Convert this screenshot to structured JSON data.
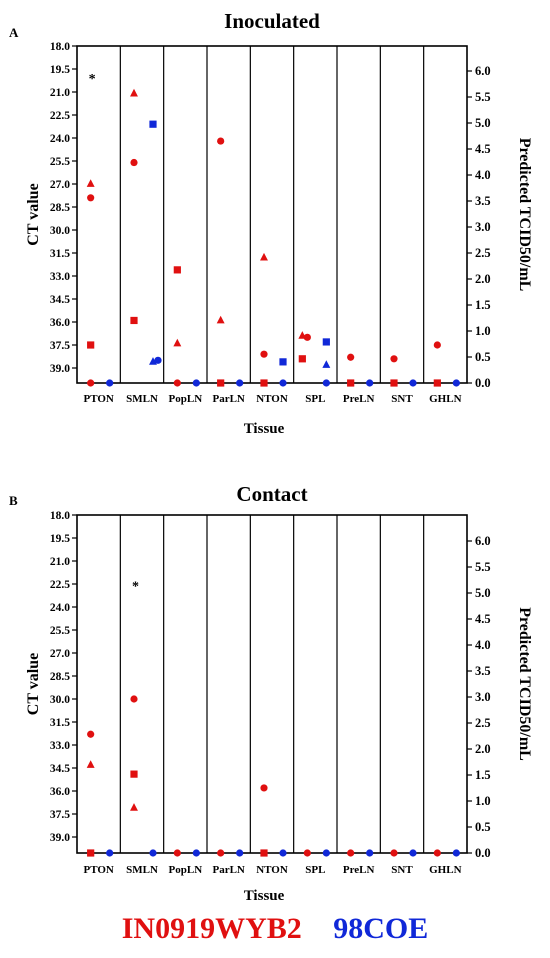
{
  "chart_data": [
    {
      "type": "scatter",
      "panel_letter": "A",
      "title": "Inoculated",
      "xlabel": "Tissue",
      "ylabel_left": "CT value",
      "ylabel_right": "Predicted TCID50/mL",
      "categories": [
        "PTON",
        "SMLN",
        "PopLN",
        "ParLN",
        "NTON",
        "SPL",
        "PreLN",
        "SNT",
        "GHLN"
      ],
      "left_axis": {
        "range": [
          18.0,
          40.5
        ],
        "inverted": true,
        "ticks": [
          "18.0",
          "19.5",
          "21.0",
          "22.5",
          "24.0",
          "25.5",
          "27.0",
          "28.5",
          "30.0",
          "31.5",
          "33.0",
          "34.5",
          "36.0",
          "37.5",
          "39.0"
        ]
      },
      "right_axis": {
        "range": [
          0.0,
          6.4
        ],
        "ticks": [
          "0.0",
          "0.5",
          "1.0",
          "1.5",
          "2.0",
          "2.5",
          "3.0",
          "3.5",
          "4.0",
          "4.5",
          "5.0",
          "5.5",
          "6.0"
        ]
      },
      "annotations": [
        {
          "text": "*",
          "category": "PTON",
          "ct": 19.9
        }
      ],
      "series": [
        {
          "name": "IN0919WYB2",
          "color": "#e01010",
          "points": [
            {
              "category": "PTON",
              "ct": 27.0,
              "marker": "triangle",
              "offset": 0
            },
            {
              "category": "PTON",
              "ct": 27.9,
              "marker": "circle",
              "offset": 0
            },
            {
              "category": "PTON",
              "ct": 37.5,
              "marker": "square",
              "offset": 0
            },
            {
              "category": "PTON",
              "ct": "baseline",
              "marker": "circle",
              "offset": 0
            },
            {
              "category": "SMLN",
              "ct": 21.1,
              "marker": "triangle",
              "offset": 0
            },
            {
              "category": "SMLN",
              "ct": 25.6,
              "marker": "circle",
              "offset": 0
            },
            {
              "category": "SMLN",
              "ct": 35.9,
              "marker": "square",
              "offset": 0
            },
            {
              "category": "PopLN",
              "ct": 32.6,
              "marker": "square",
              "offset": 0
            },
            {
              "category": "PopLN",
              "ct": 37.4,
              "marker": "triangle",
              "offset": 0
            },
            {
              "category": "PopLN",
              "ct": "baseline",
              "marker": "circle",
              "offset": 0
            },
            {
              "category": "ParLN",
              "ct": 24.2,
              "marker": "circle",
              "offset": 0
            },
            {
              "category": "ParLN",
              "ct": 35.9,
              "marker": "triangle",
              "offset": 0
            },
            {
              "category": "ParLN",
              "ct": "baseline",
              "marker": "square",
              "offset": 0
            },
            {
              "category": "NTON",
              "ct": 31.8,
              "marker": "triangle",
              "offset": 0
            },
            {
              "category": "NTON",
              "ct": 38.1,
              "marker": "circle",
              "offset": 0
            },
            {
              "category": "NTON",
              "ct": "baseline",
              "marker": "square",
              "offset": 0
            },
            {
              "category": "SPL",
              "ct": 36.9,
              "marker": "triangle",
              "offset": -1
            },
            {
              "category": "SPL",
              "ct": 37.0,
              "marker": "circle",
              "offset": 0
            },
            {
              "category": "SPL",
              "ct": 38.4,
              "marker": "square",
              "offset": -1
            },
            {
              "category": "PreLN",
              "ct": 38.3,
              "marker": "circle",
              "offset": 0
            },
            {
              "category": "PreLN",
              "ct": "baseline",
              "marker": "square",
              "offset": 0
            },
            {
              "category": "SNT",
              "ct": 38.4,
              "marker": "circle",
              "offset": 0
            },
            {
              "category": "SNT",
              "ct": "baseline",
              "marker": "square",
              "offset": 0
            },
            {
              "category": "GHLN",
              "ct": 37.5,
              "marker": "circle",
              "offset": 0
            },
            {
              "category": "GHLN",
              "ct": "baseline",
              "marker": "square",
              "offset": 0
            }
          ]
        },
        {
          "name": "98COE",
          "color": "#1028d8",
          "points": [
            {
              "category": "PTON",
              "ct": "baseline",
              "marker": "circle",
              "offset": 1
            },
            {
              "category": "SMLN",
              "ct": 23.1,
              "marker": "square",
              "offset": 1
            },
            {
              "category": "SMLN",
              "ct": 38.6,
              "marker": "triangle",
              "offset": 1
            },
            {
              "category": "SMLN",
              "ct": 38.5,
              "marker": "circle",
              "offset": 2
            },
            {
              "category": "PopLN",
              "ct": "baseline",
              "marker": "circle",
              "offset": 1
            },
            {
              "category": "ParLN",
              "ct": "baseline",
              "marker": "circle",
              "offset": 1
            },
            {
              "category": "NTON",
              "ct": 38.6,
              "marker": "square",
              "offset": 1
            },
            {
              "category": "NTON",
              "ct": "baseline",
              "marker": "circle",
              "offset": 1
            },
            {
              "category": "SPL",
              "ct": 37.3,
              "marker": "square",
              "offset": 1
            },
            {
              "category": "SPL",
              "ct": 38.8,
              "marker": "triangle",
              "offset": 1
            },
            {
              "category": "SPL",
              "ct": "baseline",
              "marker": "circle",
              "offset": 1
            },
            {
              "category": "PreLN",
              "ct": "baseline",
              "marker": "circle",
              "offset": 1
            },
            {
              "category": "SNT",
              "ct": "baseline",
              "marker": "circle",
              "offset": 1
            },
            {
              "category": "GHLN",
              "ct": "baseline",
              "marker": "circle",
              "offset": 1
            }
          ]
        }
      ]
    },
    {
      "type": "scatter",
      "panel_letter": "B",
      "title": "Contact",
      "xlabel": "Tissue",
      "ylabel_left": "CT value",
      "ylabel_right": "Predicted TCID50/mL",
      "categories": [
        "PTON",
        "SMLN",
        "PopLN",
        "ParLN",
        "NTON",
        "SPL",
        "PreLN",
        "SNT",
        "GHLN"
      ],
      "left_axis": {
        "range": [
          18.0,
          40.5
        ],
        "inverted": true,
        "ticks": [
          "18.0",
          "19.5",
          "21.0",
          "22.5",
          "24.0",
          "25.5",
          "27.0",
          "28.5",
          "30.0",
          "31.5",
          "33.0",
          "34.5",
          "36.0",
          "37.5",
          "39.0"
        ]
      },
      "right_axis": {
        "range": [
          0.0,
          6.4
        ],
        "ticks": [
          "0.0",
          "0.5",
          "1.0",
          "1.5",
          "2.0",
          "2.5",
          "3.0",
          "3.5",
          "4.0",
          "4.5",
          "5.0",
          "5.5",
          "6.0"
        ]
      },
      "annotations": [
        {
          "text": "*",
          "category": "SMLN",
          "ct": 22.4
        }
      ],
      "series": [
        {
          "name": "IN0919WYB2",
          "color": "#e01010",
          "points": [
            {
              "category": "PTON",
              "ct": 32.3,
              "marker": "circle",
              "offset": 0
            },
            {
              "category": "PTON",
              "ct": 34.3,
              "marker": "triangle",
              "offset": 0
            },
            {
              "category": "PTON",
              "ct": "baseline",
              "marker": "square",
              "offset": 0
            },
            {
              "category": "SMLN",
              "ct": 30.0,
              "marker": "circle",
              "offset": 0
            },
            {
              "category": "SMLN",
              "ct": 34.9,
              "marker": "square",
              "offset": 0
            },
            {
              "category": "SMLN",
              "ct": 37.1,
              "marker": "triangle",
              "offset": 0
            },
            {
              "category": "PopLN",
              "ct": "baseline",
              "marker": "circle",
              "offset": 0
            },
            {
              "category": "ParLN",
              "ct": "baseline",
              "marker": "circle",
              "offset": 0
            },
            {
              "category": "NTON",
              "ct": 35.8,
              "marker": "circle",
              "offset": 0
            },
            {
              "category": "NTON",
              "ct": "baseline",
              "marker": "square",
              "offset": 0
            },
            {
              "category": "SPL",
              "ct": "baseline",
              "marker": "circle",
              "offset": 0
            },
            {
              "category": "PreLN",
              "ct": "baseline",
              "marker": "circle",
              "offset": 0
            },
            {
              "category": "SNT",
              "ct": "baseline",
              "marker": "circle",
              "offset": 0
            },
            {
              "category": "GHLN",
              "ct": "baseline",
              "marker": "circle",
              "offset": 0
            }
          ]
        },
        {
          "name": "98COE",
          "color": "#1028d8",
          "points": [
            {
              "category": "PTON",
              "ct": "baseline",
              "marker": "circle",
              "offset": 1
            },
            {
              "category": "SMLN",
              "ct": "baseline",
              "marker": "circle",
              "offset": 1
            },
            {
              "category": "PopLN",
              "ct": "baseline",
              "marker": "circle",
              "offset": 1
            },
            {
              "category": "ParLN",
              "ct": "baseline",
              "marker": "circle",
              "offset": 1
            },
            {
              "category": "NTON",
              "ct": "baseline",
              "marker": "circle",
              "offset": 1
            },
            {
              "category": "SPL",
              "ct": "baseline",
              "marker": "circle",
              "offset": 1
            },
            {
              "category": "PreLN",
              "ct": "baseline",
              "marker": "circle",
              "offset": 1
            },
            {
              "category": "SNT",
              "ct": "baseline",
              "marker": "circle",
              "offset": 1
            },
            {
              "category": "GHLN",
              "ct": "baseline",
              "marker": "circle",
              "offset": 1
            }
          ]
        }
      ]
    }
  ],
  "legend": {
    "strain_red": "IN0919WYB2",
    "strain_blue": "98COE",
    "color_red": "#e01010",
    "color_blue": "#1028d8"
  }
}
